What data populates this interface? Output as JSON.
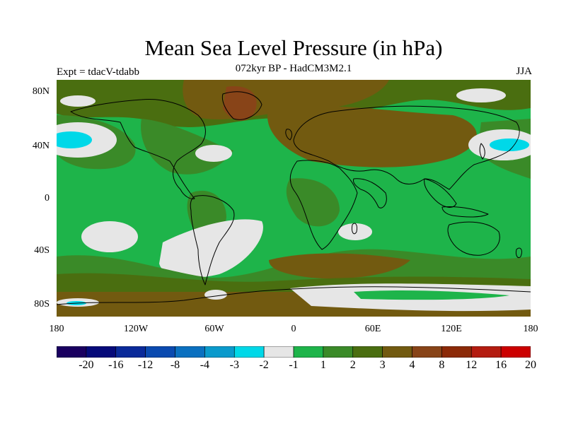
{
  "title": "Mean Sea Level Pressure (in hPa)",
  "subtitle": "072kyr BP - HadCM3M2.1",
  "experiment": "Expt = tdacV-tdabb",
  "season": "JJA",
  "lat_labels": [
    "80N",
    "40N",
    "0",
    "40S",
    "80S"
  ],
  "lon_labels": [
    "180",
    "120W",
    "60W",
    "0",
    "60E",
    "120E",
    "180"
  ],
  "colorbar": {
    "colors": [
      "#1a0060",
      "#060a7a",
      "#0a2a9a",
      "#0a4ab0",
      "#0a70c0",
      "#0a9acc",
      "#00d8e8",
      "#e6e6e6",
      "#1eb44a",
      "#3a8a28",
      "#4a6e10",
      "#725a10",
      "#884418",
      "#8c2a08",
      "#b41c10",
      "#cc0000"
    ],
    "labels": [
      "-20",
      "-16",
      "-12",
      "-8",
      "-4",
      "-3",
      "-2",
      "-1",
      "1",
      "2",
      "3",
      "4",
      "8",
      "12",
      "16",
      "20"
    ]
  },
  "legend_colors": {
    "background_green": "#1eb44a",
    "dark_green": "#3a8a28",
    "olive": "#4a6e10",
    "brown": "#725a10",
    "dark_brown": "#884418",
    "near_zero": "#e6e6e6",
    "cyan": "#00d8e8"
  }
}
